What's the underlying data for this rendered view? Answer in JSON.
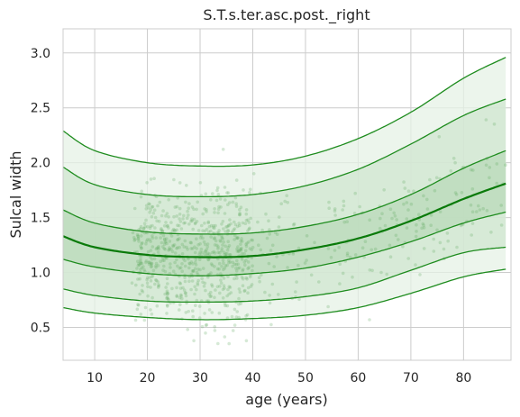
{
  "chart_data": {
    "type": "line",
    "title": "S.T.s.ter.asc.post._right",
    "xlabel": "age (years)",
    "ylabel": "Sulcal width",
    "xlim": [
      4,
      89
    ],
    "ylim": [
      0.2,
      3.22
    ],
    "grid": true,
    "legend": "none",
    "x_ticks": [
      10,
      20,
      30,
      40,
      50,
      60,
      70,
      80
    ],
    "y_ticks": [
      0.5,
      1.0,
      1.5,
      2.0,
      2.5,
      3.0
    ],
    "x_tick_labels": [
      "10",
      "20",
      "30",
      "40",
      "50",
      "60",
      "70",
      "80"
    ],
    "y_tick_labels": [
      "0.5",
      "1.0",
      "1.5",
      "2.0",
      "2.5",
      "3.0"
    ],
    "x": [
      4,
      10,
      20,
      30,
      40,
      50,
      60,
      70,
      80,
      88
    ],
    "colors": {
      "line": "#1e8c1e",
      "median": "#0a7a0a",
      "band_outer": "#e6f1e6",
      "band_mid": "#d0e6d0",
      "band_inner": "#b9dab9",
      "points": "#5aa85a"
    },
    "series": [
      {
        "values": [
          0.68,
          0.63,
          0.59,
          0.57,
          0.58,
          0.61,
          0.68,
          0.81,
          0.96,
          1.03
        ]
      },
      {
        "values": [
          0.85,
          0.79,
          0.74,
          0.73,
          0.74,
          0.78,
          0.86,
          1.02,
          1.18,
          1.23
        ]
      },
      {
        "values": [
          1.12,
          1.05,
          0.99,
          0.97,
          0.99,
          1.04,
          1.14,
          1.28,
          1.45,
          1.55
        ]
      },
      {
        "values": [
          1.33,
          1.23,
          1.16,
          1.14,
          1.15,
          1.21,
          1.31,
          1.47,
          1.67,
          1.81
        ]
      },
      {
        "values": [
          1.57,
          1.45,
          1.37,
          1.35,
          1.36,
          1.42,
          1.53,
          1.71,
          1.95,
          2.11
        ]
      },
      {
        "values": [
          1.96,
          1.8,
          1.71,
          1.69,
          1.71,
          1.79,
          1.94,
          2.17,
          2.43,
          2.58
        ]
      },
      {
        "values": [
          2.29,
          2.11,
          2.0,
          1.97,
          1.98,
          2.06,
          2.22,
          2.46,
          2.77,
          2.96
        ]
      }
    ],
    "scatter_summary": {
      "x_range": [
        17,
        88
      ],
      "dense_region_x": [
        18,
        40
      ],
      "center_y": 1.15,
      "spread_y": 0.3,
      "point_count": 900
    }
  }
}
